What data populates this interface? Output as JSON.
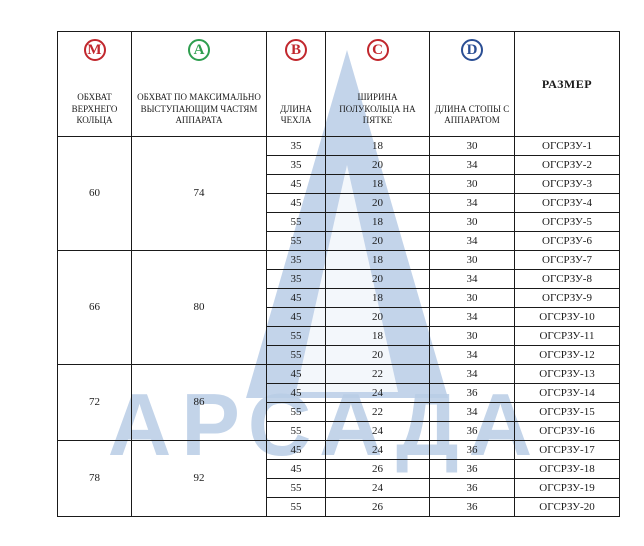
{
  "header": {
    "columns": [
      {
        "badge": "М",
        "badge_color": "#c1272d",
        "label": "ОБХВАТ ВЕРХНЕГО КОЛЬЦА"
      },
      {
        "badge": "А",
        "badge_color": "#2e9e4f",
        "label": "ОБХВАТ ПО МАКСИМАЛЬНО ВЫСТУПАЮЩИМ ЧАСТЯМ АППАРАТА"
      },
      {
        "badge": "В",
        "badge_color": "#c1272d",
        "label": "ДЛИНА ЧЕХЛА"
      },
      {
        "badge": "С",
        "badge_color": "#c1272d",
        "label": "ШИРИНА ПОЛУКОЛЬЦА НА ПЯТКЕ"
      },
      {
        "badge": "D",
        "badge_color": "#2a4e94",
        "label": "ДЛИНА СТОПЫ С АППАРАТОМ"
      },
      {
        "badge": "",
        "badge_color": "",
        "label": "РАЗМЕР"
      }
    ]
  },
  "groups": [
    {
      "m": "60",
      "a": "74",
      "rows": [
        [
          "35",
          "18",
          "30",
          "ОГСРЗУ-1"
        ],
        [
          "35",
          "20",
          "34",
          "ОГСРЗУ-2"
        ],
        [
          "45",
          "18",
          "30",
          "ОГСРЗУ-3"
        ],
        [
          "45",
          "20",
          "34",
          "ОГСРЗУ-4"
        ],
        [
          "55",
          "18",
          "30",
          "ОГСРЗУ-5"
        ],
        [
          "55",
          "20",
          "34",
          "ОГСРЗУ-6"
        ]
      ]
    },
    {
      "m": "66",
      "a": "80",
      "rows": [
        [
          "35",
          "18",
          "30",
          "ОГСРЗУ-7"
        ],
        [
          "35",
          "20",
          "34",
          "ОГСРЗУ-8"
        ],
        [
          "45",
          "18",
          "30",
          "ОГСРЗУ-9"
        ],
        [
          "45",
          "20",
          "34",
          "ОГСРЗУ-10"
        ],
        [
          "55",
          "18",
          "30",
          "ОГСРЗУ-11"
        ],
        [
          "55",
          "20",
          "34",
          "ОГСРЗУ-12"
        ]
      ]
    },
    {
      "m": "72",
      "a": "86",
      "rows": [
        [
          "45",
          "22",
          "34",
          "ОГСРЗУ-13"
        ],
        [
          "45",
          "24",
          "36",
          "ОГСРЗУ-14"
        ],
        [
          "55",
          "22",
          "34",
          "ОГСРЗУ-15"
        ],
        [
          "55",
          "24",
          "36",
          "ОГСРЗУ-16"
        ]
      ]
    },
    {
      "m": "78",
      "a": "92",
      "rows": [
        [
          "45",
          "24",
          "36",
          "ОГСРЗУ-17"
        ],
        [
          "45",
          "26",
          "36",
          "ОГСРЗУ-18"
        ],
        [
          "55",
          "24",
          "36",
          "ОГСРЗУ-19"
        ],
        [
          "55",
          "26",
          "36",
          "ОГСРЗУ-20"
        ]
      ]
    }
  ],
  "watermark": {
    "text": "АРСАДА",
    "color": "#b9cde6"
  }
}
